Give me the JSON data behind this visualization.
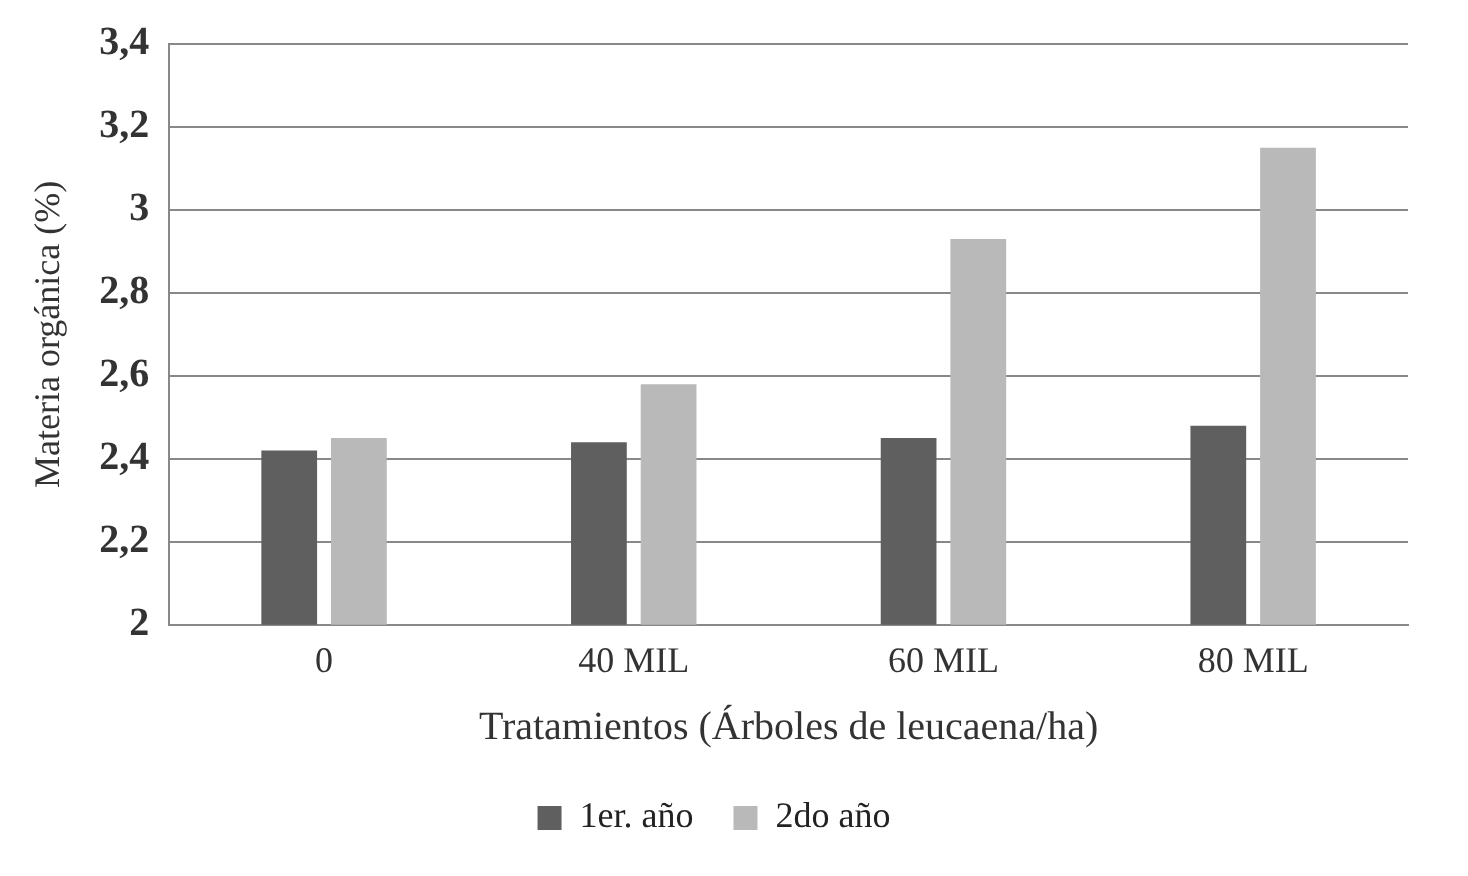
{
  "chart_data": {
    "type": "bar",
    "xlabel": "Tratamientos (Árboles de leucaena/ha)",
    "ylabel": "Materia orgánica (%)",
    "categories": [
      "0",
      "40 MIL",
      "60 MIL",
      "80 MIL"
    ],
    "series": [
      {
        "name": "1er. año",
        "color": "#5f5f5f",
        "values": [
          2.42,
          2.44,
          2.45,
          2.48
        ]
      },
      {
        "name": "2do año",
        "color": "#b9b9b9",
        "values": [
          2.45,
          2.58,
          2.93,
          3.15
        ]
      }
    ],
    "ylim": [
      2,
      3.4
    ],
    "yticks": [
      {
        "value": 2,
        "label": "2"
      },
      {
        "value": 2.2,
        "label": "2,2"
      },
      {
        "value": 2.4,
        "label": "2,4"
      },
      {
        "value": 2.6,
        "label": "2,6"
      },
      {
        "value": 2.8,
        "label": "2,8"
      },
      {
        "value": 3,
        "label": "3"
      },
      {
        "value": 3.2,
        "label": "3,2"
      },
      {
        "value": 3.4,
        "label": "3,4"
      }
    ],
    "grid": "y",
    "legend": "bottom"
  }
}
